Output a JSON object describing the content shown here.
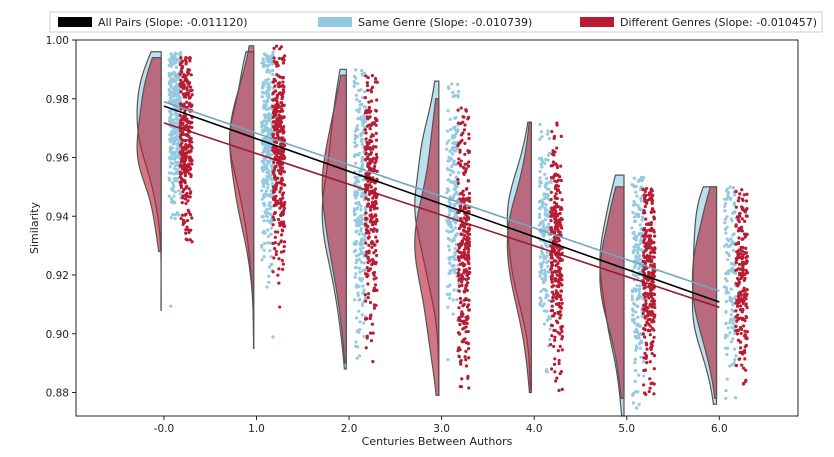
{
  "chart_data": {
    "type": "raincloud",
    "xlabel": "Centuries Between Authors",
    "ylabel": "Similarity",
    "xticks": [
      0,
      1,
      2,
      3,
      4,
      5,
      6
    ],
    "xtick_labels": [
      "-0.0",
      "1.0",
      "2.0",
      "3.0",
      "4.0",
      "5.0",
      "6.0"
    ],
    "yticks": [
      0.88,
      0.9,
      0.92,
      0.94,
      0.96,
      0.98,
      1.0
    ],
    "ytick_labels": [
      "0.88",
      "0.90",
      "0.92",
      "0.94",
      "0.96",
      "0.98",
      "1.00"
    ],
    "xlim": [
      -0.95,
      6.85
    ],
    "ylim": [
      0.872,
      1.0
    ],
    "legend_position": "top",
    "series": [
      {
        "name": "All Pairs (Slope: -0.011120)",
        "color": "#000000",
        "trend_line": {
          "x": [
            0,
            6
          ],
          "y": [
            0.9775,
            0.9108
          ]
        }
      },
      {
        "name": "Same Genre (Slope: -0.010739)",
        "color": "#93c9e2",
        "trend_color": "#6fa8c0",
        "trend_line": {
          "x": [
            0,
            6
          ],
          "y": [
            0.979,
            0.9145
          ]
        },
        "groups": [
          {
            "x": 0,
            "mean": 0.974,
            "sd": 0.016,
            "min": 0.908,
            "max": 0.996,
            "n": 320
          },
          {
            "x": 1,
            "mean": 0.968,
            "sd": 0.018,
            "min": 0.895,
            "max": 0.996,
            "n": 320
          },
          {
            "x": 2,
            "mean": 0.947,
            "sd": 0.022,
            "min": 0.888,
            "max": 0.99,
            "n": 260
          },
          {
            "x": 3,
            "mean": 0.948,
            "sd": 0.02,
            "min": 0.879,
            "max": 0.986,
            "n": 200
          },
          {
            "x": 4,
            "mean": 0.933,
            "sd": 0.018,
            "min": 0.881,
            "max": 0.972,
            "n": 170
          },
          {
            "x": 5,
            "mean": 0.918,
            "sd": 0.02,
            "min": 0.872,
            "max": 0.954,
            "n": 190
          },
          {
            "x": 6,
            "mean": 0.92,
            "sd": 0.019,
            "min": 0.876,
            "max": 0.95,
            "n": 130
          }
        ]
      },
      {
        "name": "Different Genres (Slope: -0.010457)",
        "color": "#b81c33",
        "trend_color": "#9b1a2c",
        "trend_line": {
          "x": [
            0,
            6
          ],
          "y": [
            0.9718,
            0.909
          ]
        },
        "groups": [
          {
            "x": 0,
            "mean": 0.967,
            "sd": 0.017,
            "min": 0.928,
            "max": 0.994,
            "n": 300
          },
          {
            "x": 1,
            "mean": 0.962,
            "sd": 0.019,
            "min": 0.895,
            "max": 0.998,
            "n": 340
          },
          {
            "x": 2,
            "mean": 0.95,
            "sd": 0.022,
            "min": 0.89,
            "max": 0.988,
            "n": 300
          },
          {
            "x": 3,
            "mean": 0.93,
            "sd": 0.023,
            "min": 0.879,
            "max": 0.98,
            "n": 300
          },
          {
            "x": 4,
            "mean": 0.928,
            "sd": 0.019,
            "min": 0.88,
            "max": 0.972,
            "n": 300
          },
          {
            "x": 5,
            "mean": 0.921,
            "sd": 0.018,
            "min": 0.878,
            "max": 0.95,
            "n": 290
          },
          {
            "x": 6,
            "mean": 0.918,
            "sd": 0.017,
            "min": 0.878,
            "max": 0.95,
            "n": 210
          }
        ]
      }
    ]
  }
}
